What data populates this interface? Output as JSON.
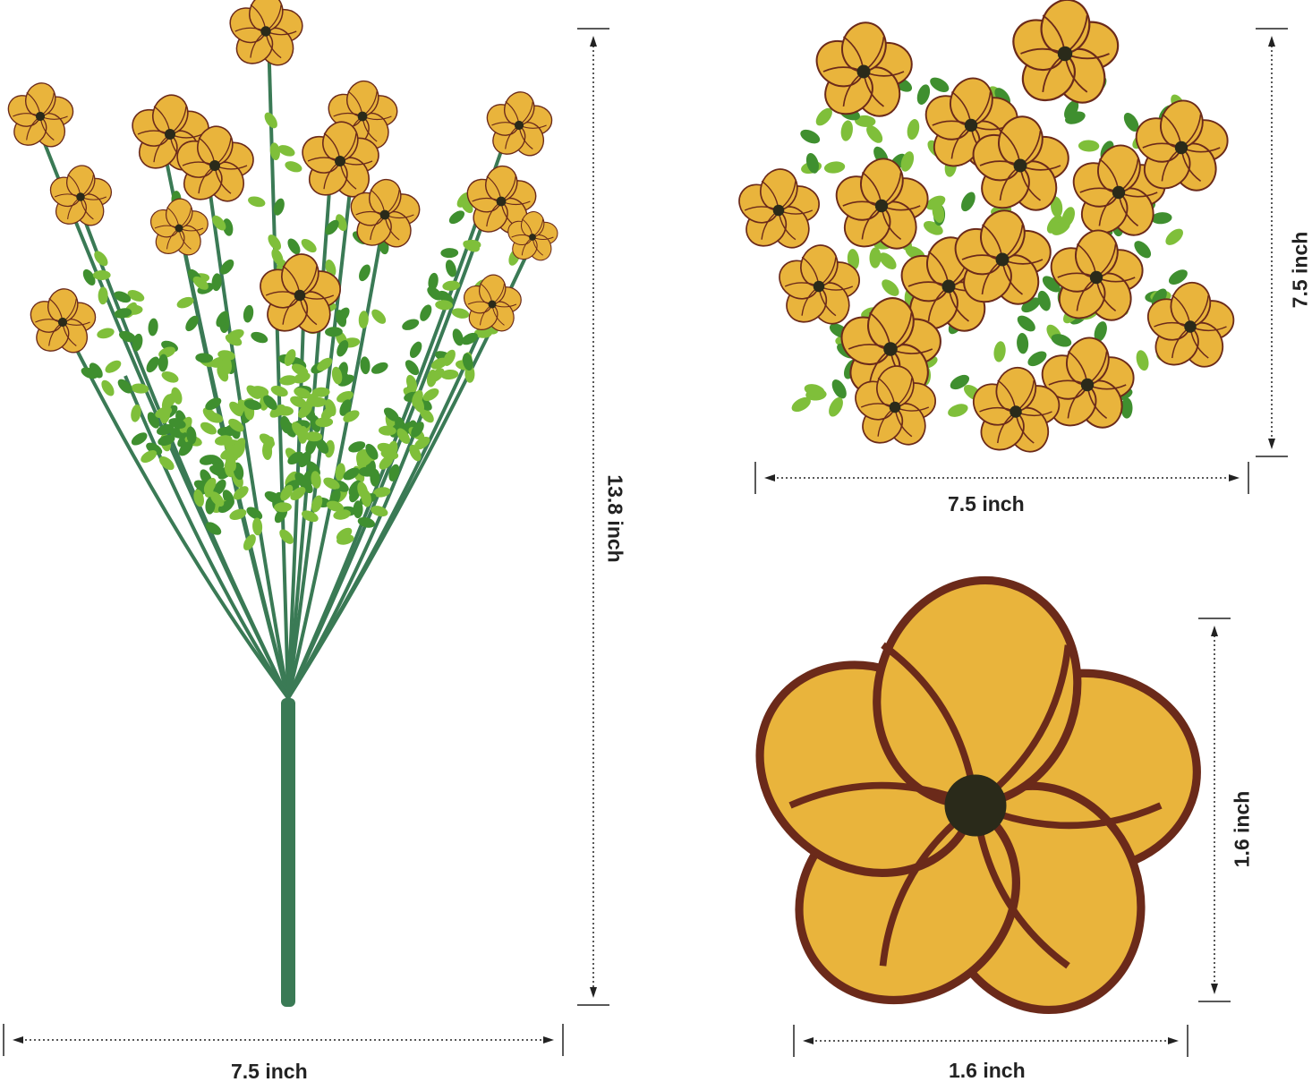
{
  "product": {
    "bouquet": {
      "height_label": "13.8 inch",
      "width_label": "7.5 inch"
    },
    "top_view": {
      "height_label": "7.5 inch",
      "width_label": "7.5 inch"
    },
    "single_flower": {
      "height_label": "1.6 inch",
      "width_label": "1.6 inch"
    }
  },
  "colors": {
    "petal": "#e9b43c",
    "vein": "#6b2a1a",
    "leaf": "#3f8f2f",
    "stem": "#3a7a55",
    "line": "#222222"
  }
}
